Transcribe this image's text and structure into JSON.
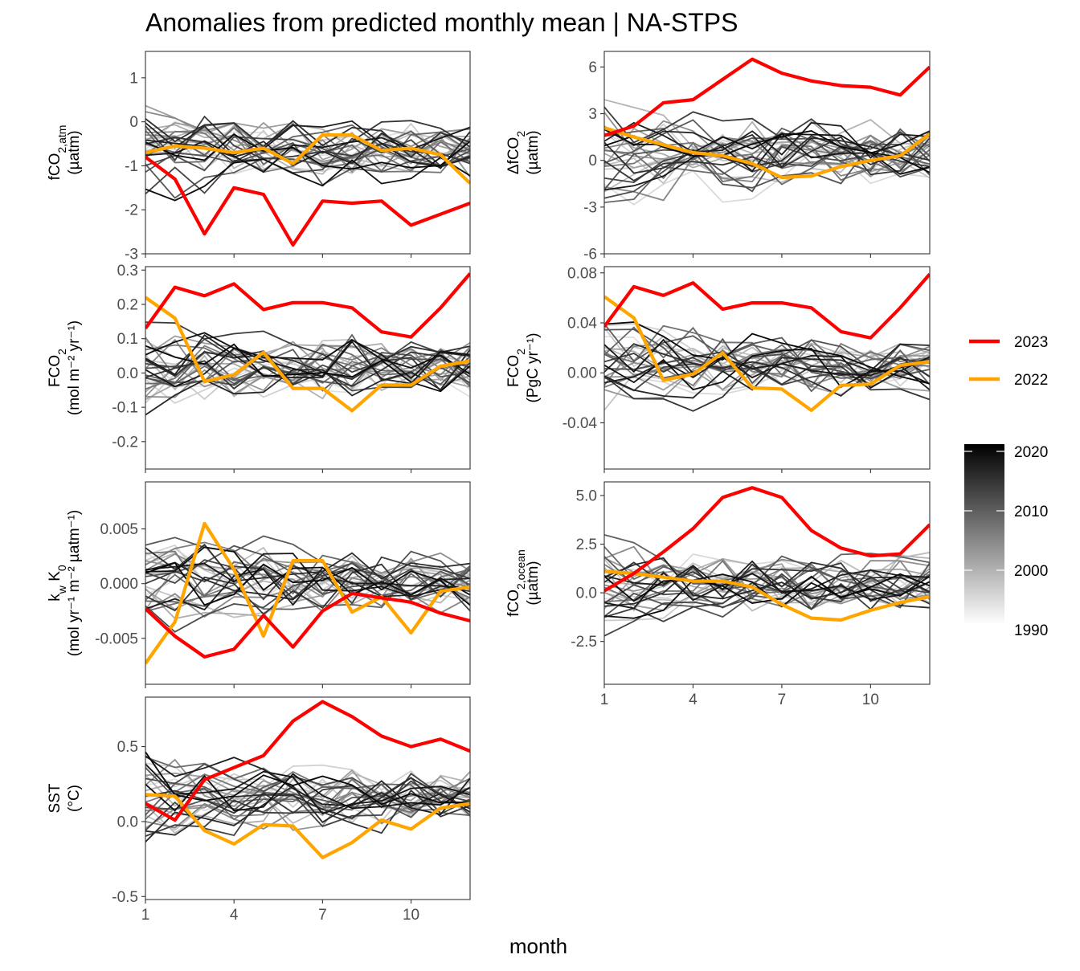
{
  "title": "Anomalies from predicted monthly mean | NA-STPS",
  "xlabel": "month",
  "legend": {
    "highlight": [
      {
        "label": "2023",
        "color": "#ff0000"
      },
      {
        "label": "2022",
        "color": "#ffa500"
      }
    ],
    "gradient": {
      "ticks": [
        "2020",
        "2010",
        "2000",
        "1990"
      ],
      "low_color": "#ffffff",
      "high_color": "#000000"
    }
  },
  "chart_data": [
    {
      "type": "line",
      "ylabel": {
        "main": "fCO",
        "sub": "2,atm",
        "unit": "(µatm)"
      },
      "x": [
        1,
        2,
        3,
        4,
        5,
        6,
        7,
        8,
        9,
        10,
        11,
        12
      ],
      "xticks": [
        "1",
        "4",
        "7",
        "10"
      ],
      "xticks_visible": false,
      "yticks": [
        "1",
        "0",
        "-1",
        "-2",
        "-3"
      ],
      "ylim": [
        -3,
        1.6
      ],
      "series": [
        {
          "name": "2023",
          "values": [
            -0.8,
            -1.3,
            -2.55,
            -1.5,
            -1.65,
            -2.8,
            -1.8,
            -1.85,
            -1.8,
            -2.35,
            -2.1,
            -1.85
          ]
        },
        {
          "name": "2022",
          "values": [
            -0.7,
            -0.55,
            -0.6,
            -0.7,
            -0.6,
            -0.95,
            -0.3,
            -0.3,
            -0.65,
            -0.6,
            -0.75,
            -1.4
          ]
        }
      ]
    },
    {
      "type": "line",
      "ylabel": {
        "main": "ΔfCO",
        "sub": "2",
        "unit": "(µatm)"
      },
      "x": [
        1,
        2,
        3,
        4,
        5,
        6,
        7,
        8,
        9,
        10,
        11,
        12
      ],
      "xticks": [
        "1",
        "4",
        "7",
        "10"
      ],
      "xticks_visible": false,
      "yticks": [
        "6",
        "3",
        "0",
        "-3",
        "-6"
      ],
      "ylim": [
        -6,
        7
      ],
      "series": [
        {
          "name": "2023",
          "values": [
            1.6,
            2.2,
            3.7,
            3.9,
            5.2,
            6.5,
            5.6,
            5.1,
            4.8,
            4.7,
            4.2,
            6.0
          ]
        },
        {
          "name": "2022",
          "values": [
            2.1,
            1.5,
            1.0,
            0.5,
            0.3,
            -0.2,
            -1.1,
            -1.0,
            -0.4,
            0.0,
            0.3,
            1.7
          ]
        }
      ]
    },
    {
      "type": "line",
      "ylabel": {
        "main": "FCO",
        "sub": "2",
        "unit": "(mol m⁻² yr⁻¹)"
      },
      "x": [
        1,
        2,
        3,
        4,
        5,
        6,
        7,
        8,
        9,
        10,
        11,
        12
      ],
      "xticks": [
        "1",
        "4",
        "7",
        "10"
      ],
      "xticks_visible": false,
      "yticks": [
        "0.3",
        "0.2",
        "0.1",
        "0.0",
        "-0.1",
        "-0.2"
      ],
      "ylim": [
        -0.28,
        0.31
      ],
      "series": [
        {
          "name": "2023",
          "values": [
            0.13,
            0.25,
            0.225,
            0.26,
            0.185,
            0.205,
            0.205,
            0.19,
            0.12,
            0.105,
            0.19,
            0.29
          ]
        },
        {
          "name": "2022",
          "values": [
            0.22,
            0.16,
            -0.025,
            -0.005,
            0.06,
            -0.045,
            -0.045,
            -0.11,
            -0.035,
            -0.035,
            0.02,
            0.035
          ]
        }
      ]
    },
    {
      "type": "line",
      "ylabel": {
        "main": "FCO",
        "sub": "2",
        "unit": "(PgC yr⁻¹)"
      },
      "x": [
        1,
        2,
        3,
        4,
        5,
        6,
        7,
        8,
        9,
        10,
        11,
        12
      ],
      "xticks": [
        "1",
        "4",
        "7",
        "10"
      ],
      "xticks_visible": false,
      "yticks": [
        "0.08",
        "0.04",
        "0.00",
        "-0.04"
      ],
      "ylim": [
        -0.077,
        0.085
      ],
      "series": [
        {
          "name": "2023",
          "values": [
            0.037,
            0.069,
            0.062,
            0.072,
            0.051,
            0.056,
            0.056,
            0.052,
            0.033,
            0.028,
            0.052,
            0.079
          ]
        },
        {
          "name": "2022",
          "values": [
            0.061,
            0.044,
            -0.006,
            -0.001,
            0.016,
            -0.012,
            -0.013,
            -0.03,
            -0.01,
            -0.009,
            0.006,
            0.009
          ]
        }
      ]
    },
    {
      "type": "line",
      "ylabel": {
        "main": "k",
        "sub": "w",
        "main2": " K",
        "sub2": "0",
        "unit": "(mol yr⁻¹ m⁻² µatm⁻¹)"
      },
      "x": [
        1,
        2,
        3,
        4,
        5,
        6,
        7,
        8,
        9,
        10,
        11,
        12
      ],
      "xticks": [
        "1",
        "4",
        "7",
        "10"
      ],
      "xticks_visible": false,
      "yticks": [
        "0.005",
        "0.000",
        "-0.005"
      ],
      "ylim": [
        -0.0092,
        0.0093
      ],
      "series": [
        {
          "name": "2023",
          "values": [
            -0.0023,
            -0.0048,
            -0.0067,
            -0.006,
            -0.0029,
            -0.0058,
            -0.0025,
            -0.0009,
            -0.0013,
            -0.0017,
            -0.0027,
            -0.0034
          ]
        },
        {
          "name": "2022",
          "values": [
            -0.0073,
            -0.0035,
            0.0055,
            0.0013,
            -0.0048,
            0.0021,
            0.0021,
            -0.0026,
            -0.0012,
            -0.0045,
            -0.0007,
            -0.0003
          ]
        }
      ]
    },
    {
      "type": "line",
      "ylabel": {
        "main": "fCO",
        "sub": "2,ocean",
        "unit": "(µatm)"
      },
      "x": [
        1,
        2,
        3,
        4,
        5,
        6,
        7,
        8,
        9,
        10,
        11,
        12
      ],
      "xticks": [
        "1",
        "4",
        "7",
        "10"
      ],
      "xticks_visible": true,
      "yticks": [
        "5.0",
        "2.5",
        "0.0",
        "-2.5"
      ],
      "ylim": [
        -4.7,
        5.7
      ],
      "series": [
        {
          "name": "2023",
          "values": [
            0.1,
            1.0,
            2.1,
            3.3,
            4.9,
            5.4,
            4.9,
            3.2,
            2.3,
            1.9,
            2.0,
            3.5
          ]
        },
        {
          "name": "2022",
          "values": [
            1.1,
            1.0,
            0.8,
            0.6,
            0.6,
            0.3,
            -0.6,
            -1.3,
            -1.4,
            -0.9,
            -0.5,
            -0.2
          ]
        }
      ]
    },
    {
      "type": "line",
      "ylabel": {
        "main": "SST",
        "sub": "",
        "unit": "(°C)"
      },
      "x": [
        1,
        2,
        3,
        4,
        5,
        6,
        7,
        8,
        9,
        10,
        11,
        12
      ],
      "xticks": [
        "1",
        "4",
        "7",
        "10"
      ],
      "xticks_visible": true,
      "yticks": [
        "0.5",
        "0.0",
        "-0.5"
      ],
      "ylim": [
        -0.52,
        0.83
      ],
      "series": [
        {
          "name": "2023",
          "values": [
            0.12,
            0.01,
            0.28,
            0.36,
            0.44,
            0.67,
            0.8,
            0.7,
            0.57,
            0.5,
            0.55,
            0.47
          ]
        },
        {
          "name": "2022",
          "values": [
            0.18,
            0.17,
            -0.06,
            -0.15,
            -0.02,
            -0.03,
            -0.24,
            -0.14,
            0.01,
            -0.05,
            0.09,
            0.12
          ]
        }
      ]
    }
  ]
}
